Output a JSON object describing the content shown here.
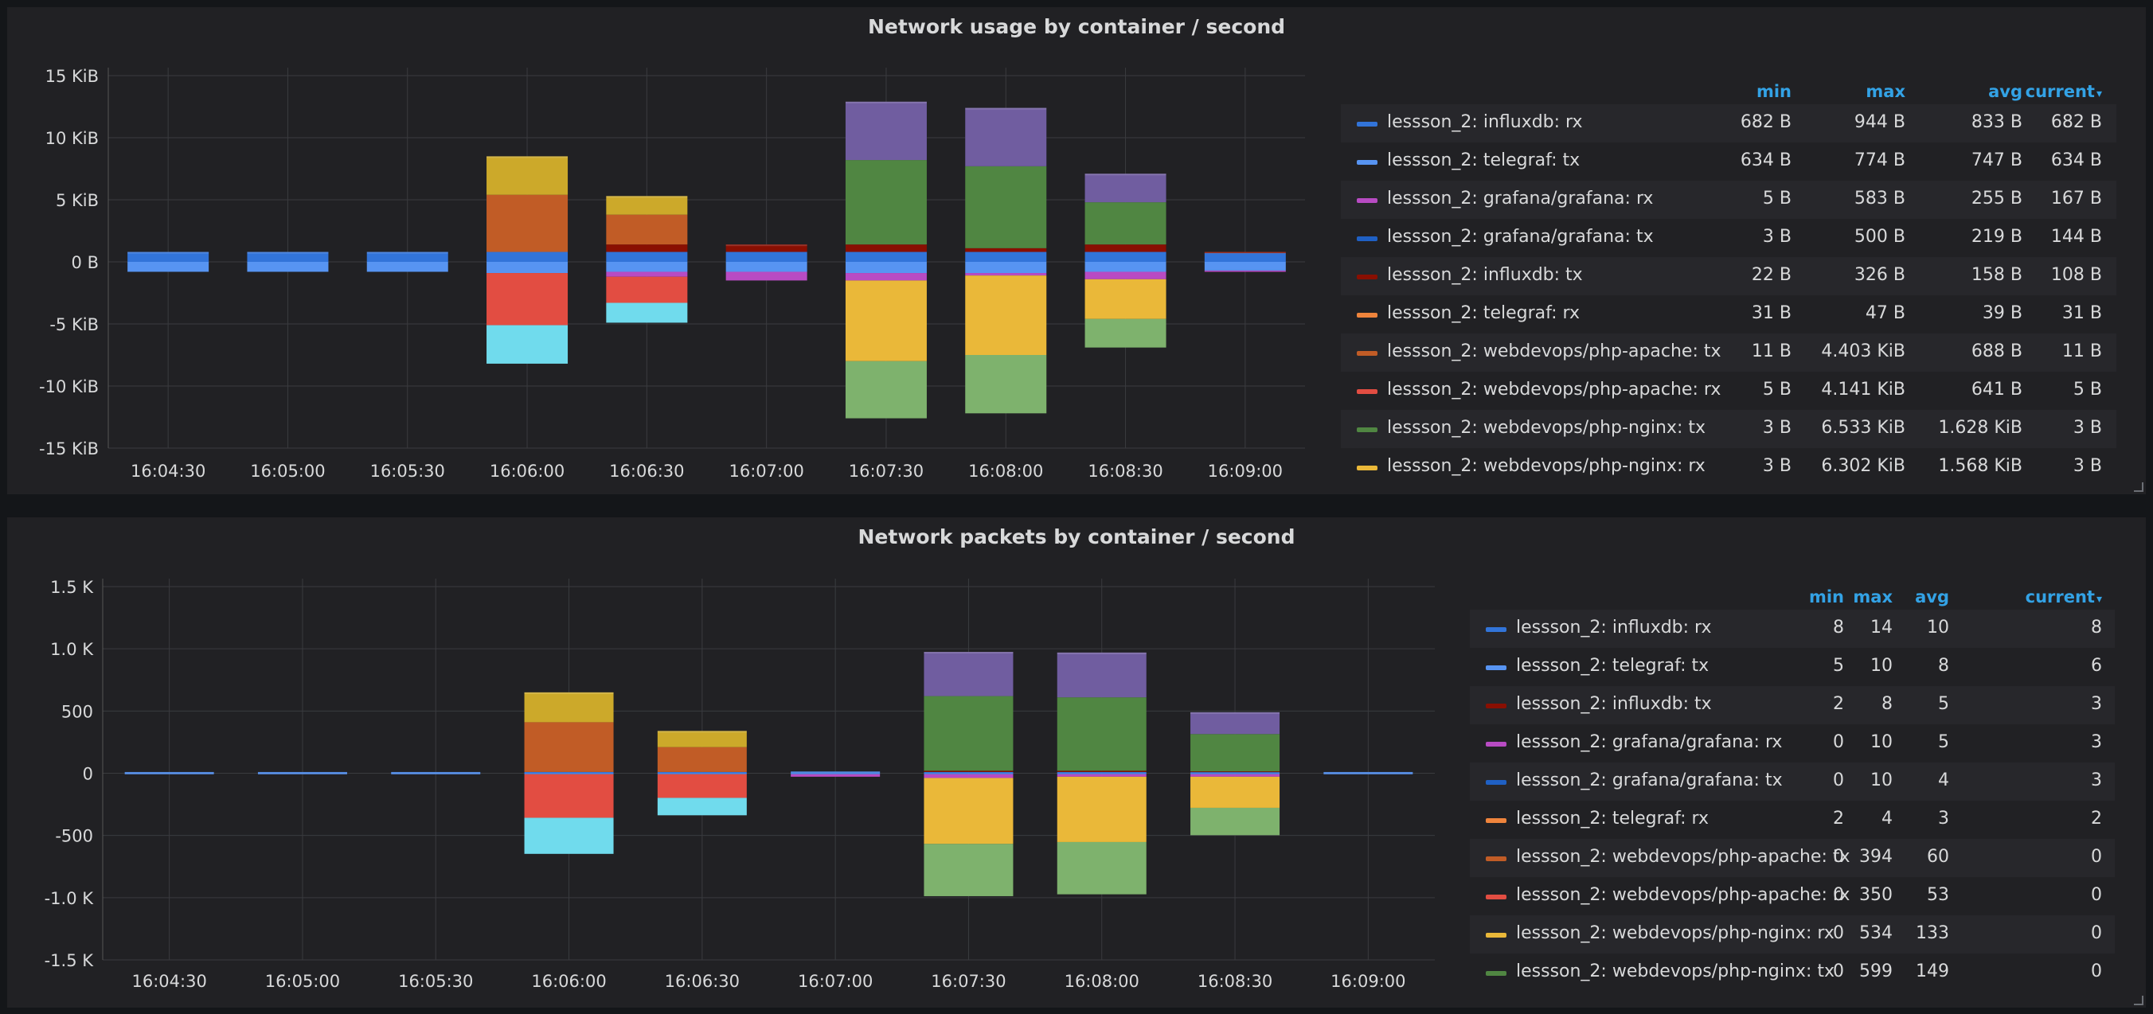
{
  "colors": {
    "accent": "#33a2e5",
    "panel_bg": "#212124",
    "grid": "#3a3b3f",
    "text": "#d8d9da"
  },
  "legend_headers": {
    "min": "min",
    "max": "max",
    "avg": "avg",
    "current": "current"
  },
  "chart_data": [
    {
      "type": "bar",
      "title": "Network usage by container / second",
      "x_ticks": [
        "16:04:30",
        "16:05:00",
        "16:05:30",
        "16:06:00",
        "16:06:30",
        "16:07:00",
        "16:07:30",
        "16:08:00",
        "16:08:30",
        "16:09:00"
      ],
      "y_ticks": [
        {
          "v": 15,
          "label": "15 KiB"
        },
        {
          "v": 10,
          "label": "10 KiB"
        },
        {
          "v": 5,
          "label": "5 KiB"
        },
        {
          "v": 0,
          "label": "0 B"
        },
        {
          "v": -5,
          "label": "-5 KiB"
        },
        {
          "v": -10,
          "label": "-10 KiB"
        },
        {
          "v": -15,
          "label": "-15 KiB"
        }
      ],
      "ylim": [
        -15,
        15
      ],
      "y_unit": "KiB",
      "stacked": true,
      "grid": true,
      "legend_position": "right",
      "bar_x": [
        0,
        1,
        2,
        3,
        4,
        5,
        6,
        7,
        8,
        9
      ],
      "stacks": [
        {
          "pos": [
            [
              0.8,
              "#3274d9"
            ]
          ],
          "neg": [
            [
              -0.8,
              "#5794f2"
            ]
          ]
        },
        {
          "pos": [
            [
              0.8,
              "#3274d9"
            ]
          ],
          "neg": [
            [
              -0.8,
              "#5794f2"
            ]
          ]
        },
        {
          "pos": [
            [
              0.8,
              "#3274d9"
            ]
          ],
          "neg": [
            [
              -0.8,
              "#5794f2"
            ]
          ]
        },
        {
          "pos": [
            [
              0.8,
              "#3274d9"
            ],
            [
              4.6,
              "#c15c26"
            ],
            [
              3.1,
              "#cca92a"
            ]
          ],
          "neg": [
            [
              -0.9,
              "#5794f2"
            ],
            [
              -4.2,
              "#e24d42"
            ],
            [
              -3.1,
              "#70dbed"
            ]
          ]
        },
        {
          "pos": [
            [
              0.8,
              "#3274d9"
            ],
            [
              0.6,
              "#890f02"
            ],
            [
              2.4,
              "#c15c26"
            ],
            [
              1.5,
              "#cca92a"
            ]
          ],
          "neg": [
            [
              -0.8,
              "#5794f2"
            ],
            [
              -0.4,
              "#b84bc3"
            ],
            [
              -2.1,
              "#e24d42"
            ],
            [
              -1.6,
              "#70dbed"
            ]
          ]
        },
        {
          "pos": [
            [
              0.8,
              "#3274d9"
            ],
            [
              0.6,
              "#890f02"
            ]
          ],
          "neg": [
            [
              -0.8,
              "#5794f2"
            ],
            [
              -0.7,
              "#b84bc3"
            ]
          ]
        },
        {
          "pos": [
            [
              0.8,
              "#3274d9"
            ],
            [
              0.6,
              "#890f02"
            ],
            [
              6.8,
              "#508642"
            ],
            [
              4.7,
              "#705da0"
            ]
          ],
          "neg": [
            [
              -0.9,
              "#5794f2"
            ],
            [
              -0.6,
              "#b84bc3"
            ],
            [
              -6.5,
              "#eab839"
            ],
            [
              -4.6,
              "#7eb26d"
            ]
          ]
        },
        {
          "pos": [
            [
              0.8,
              "#3274d9"
            ],
            [
              0.3,
              "#890f02"
            ],
            [
              6.6,
              "#508642"
            ],
            [
              4.7,
              "#705da0"
            ]
          ],
          "neg": [
            [
              -0.9,
              "#5794f2"
            ],
            [
              -0.2,
              "#b84bc3"
            ],
            [
              -6.4,
              "#eab839"
            ],
            [
              -4.7,
              "#7eb26d"
            ]
          ]
        },
        {
          "pos": [
            [
              0.8,
              "#3274d9"
            ],
            [
              0.6,
              "#890f02"
            ],
            [
              3.4,
              "#508642"
            ],
            [
              2.3,
              "#705da0"
            ]
          ],
          "neg": [
            [
              -0.8,
              "#5794f2"
            ],
            [
              -0.6,
              "#b84bc3"
            ],
            [
              -3.2,
              "#eab839"
            ],
            [
              -2.3,
              "#7eb26d"
            ]
          ]
        },
        {
          "pos": [
            [
              0.7,
              "#3274d9"
            ],
            [
              0.1,
              "#890f02"
            ]
          ],
          "neg": [
            [
              -0.7,
              "#5794f2"
            ],
            [
              -0.1,
              "#b84bc3"
            ]
          ]
        }
      ],
      "legend": [
        {
          "name": "lessson_2: influxdb: rx",
          "color": "#3274d9",
          "min": "682 B",
          "max": "944 B",
          "avg": "833 B",
          "current": "682 B"
        },
        {
          "name": "lessson_2: telegraf: tx",
          "color": "#5794f2",
          "min": "634 B",
          "max": "774 B",
          "avg": "747 B",
          "current": "634 B"
        },
        {
          "name": "lessson_2: grafana/grafana: rx",
          "color": "#b84bc3",
          "min": "5 B",
          "max": "583 B",
          "avg": "255 B",
          "current": "167 B"
        },
        {
          "name": "lessson_2: grafana/grafana: tx",
          "color": "#1f60c4",
          "min": "3 B",
          "max": "500 B",
          "avg": "219 B",
          "current": "144 B"
        },
        {
          "name": "lessson_2: influxdb: tx",
          "color": "#890f02",
          "min": "22 B",
          "max": "326 B",
          "avg": "158 B",
          "current": "108 B"
        },
        {
          "name": "lessson_2: telegraf: rx",
          "color": "#ef843c",
          "min": "31 B",
          "max": "47 B",
          "avg": "39 B",
          "current": "31 B"
        },
        {
          "name": "lessson_2: webdevops/php-apache: tx",
          "color": "#c15c26",
          "min": "11 B",
          "max": "4.403 KiB",
          "avg": "688 B",
          "current": "11 B"
        },
        {
          "name": "lessson_2: webdevops/php-apache: rx",
          "color": "#e24d42",
          "min": "5 B",
          "max": "4.141 KiB",
          "avg": "641 B",
          "current": "5 B"
        },
        {
          "name": "lessson_2: webdevops/php-nginx: tx",
          "color": "#508642",
          "min": "3 B",
          "max": "6.533 KiB",
          "avg": "1.628 KiB",
          "current": "3 B"
        },
        {
          "name": "lessson_2: webdevops/php-nginx: rx",
          "color": "#eab839",
          "min": "3 B",
          "max": "6.302 KiB",
          "avg": "1.568 KiB",
          "current": "3 B"
        }
      ]
    },
    {
      "type": "bar",
      "title": "Network packets by container / second",
      "x_ticks": [
        "16:04:30",
        "16:05:00",
        "16:05:30",
        "16:06:00",
        "16:06:30",
        "16:07:00",
        "16:07:30",
        "16:08:00",
        "16:08:30",
        "16:09:00"
      ],
      "y_ticks": [
        {
          "v": 1500,
          "label": "1.5 K"
        },
        {
          "v": 1000,
          "label": "1.0 K"
        },
        {
          "v": 500,
          "label": "500"
        },
        {
          "v": 0,
          "label": "0"
        },
        {
          "v": -500,
          "label": "-500"
        },
        {
          "v": -1000,
          "label": "-1.0 K"
        },
        {
          "v": -1500,
          "label": "-1.5 K"
        }
      ],
      "ylim": [
        -1500,
        1500
      ],
      "stacked": true,
      "grid": true,
      "legend_position": "right",
      "bar_x": [
        0,
        1,
        2,
        3,
        4,
        5,
        6,
        7,
        8,
        9
      ],
      "stacks": [
        {
          "pos": [
            [
              10,
              "#3274d9"
            ]
          ],
          "neg": [
            [
              -8,
              "#5794f2"
            ]
          ]
        },
        {
          "pos": [
            [
              10,
              "#3274d9"
            ]
          ],
          "neg": [
            [
              -8,
              "#5794f2"
            ]
          ]
        },
        {
          "pos": [
            [
              10,
              "#3274d9"
            ]
          ],
          "neg": [
            [
              -8,
              "#5794f2"
            ]
          ]
        },
        {
          "pos": [
            [
              10,
              "#3274d9"
            ],
            [
              400,
              "#c15c26"
            ],
            [
              240,
              "#cca92a"
            ]
          ],
          "neg": [
            [
              -8,
              "#5794f2"
            ],
            [
              -350,
              "#e24d42"
            ],
            [
              -290,
              "#70dbed"
            ]
          ]
        },
        {
          "pos": [
            [
              10,
              "#3274d9"
            ],
            [
              200,
              "#c15c26"
            ],
            [
              130,
              "#cca92a"
            ]
          ],
          "neg": [
            [
              -8,
              "#5794f2"
            ],
            [
              -190,
              "#e24d42"
            ],
            [
              -140,
              "#70dbed"
            ]
          ]
        },
        {
          "pos": [
            [
              14,
              "#3274d9"
            ]
          ],
          "neg": [
            [
              -8,
              "#5794f2"
            ],
            [
              -20,
              "#b84bc3"
            ]
          ]
        },
        {
          "pos": [
            [
              10,
              "#3274d9"
            ],
            [
              10,
              "#890f02"
            ],
            [
              600,
              "#508642"
            ],
            [
              355,
              "#705da0"
            ]
          ],
          "neg": [
            [
              -8,
              "#5794f2"
            ],
            [
              -30,
              "#b84bc3"
            ],
            [
              -530,
              "#eab839"
            ],
            [
              -420,
              "#7eb26d"
            ]
          ]
        },
        {
          "pos": [
            [
              10,
              "#3274d9"
            ],
            [
              10,
              "#890f02"
            ],
            [
              590,
              "#508642"
            ],
            [
              360,
              "#705da0"
            ]
          ],
          "neg": [
            [
              -8,
              "#5794f2"
            ],
            [
              -20,
              "#b84bc3"
            ],
            [
              -525,
              "#eab839"
            ],
            [
              -420,
              "#7eb26d"
            ]
          ]
        },
        {
          "pos": [
            [
              10,
              "#3274d9"
            ],
            [
              5,
              "#890f02"
            ],
            [
              300,
              "#508642"
            ],
            [
              175,
              "#705da0"
            ]
          ],
          "neg": [
            [
              -8,
              "#5794f2"
            ],
            [
              -20,
              "#b84bc3"
            ],
            [
              -250,
              "#eab839"
            ],
            [
              -220,
              "#7eb26d"
            ]
          ]
        },
        {
          "pos": [
            [
              10,
              "#3274d9"
            ]
          ],
          "neg": [
            [
              -8,
              "#5794f2"
            ]
          ]
        }
      ],
      "legend": [
        {
          "name": "lessson_2: influxdb: rx",
          "color": "#3274d9",
          "min": "8",
          "max": "14",
          "avg": "10",
          "current": "8"
        },
        {
          "name": "lessson_2: telegraf: tx",
          "color": "#5794f2",
          "min": "5",
          "max": "10",
          "avg": "8",
          "current": "6"
        },
        {
          "name": "lessson_2: influxdb: tx",
          "color": "#890f02",
          "min": "2",
          "max": "8",
          "avg": "5",
          "current": "3"
        },
        {
          "name": "lessson_2: grafana/grafana: rx",
          "color": "#b84bc3",
          "min": "0",
          "max": "10",
          "avg": "5",
          "current": "3"
        },
        {
          "name": "lessson_2: grafana/grafana: tx",
          "color": "#1f60c4",
          "min": "0",
          "max": "10",
          "avg": "4",
          "current": "3"
        },
        {
          "name": "lessson_2: telegraf: rx",
          "color": "#ef843c",
          "min": "2",
          "max": "4",
          "avg": "3",
          "current": "2"
        },
        {
          "name": "lessson_2: webdevops/php-apache: tx",
          "color": "#c15c26",
          "min": "0",
          "max": "394",
          "avg": "60",
          "current": "0"
        },
        {
          "name": "lessson_2: webdevops/php-apache: rx",
          "color": "#e24d42",
          "min": "0",
          "max": "350",
          "avg": "53",
          "current": "0"
        },
        {
          "name": "lessson_2: webdevops/php-nginx: rx",
          "color": "#eab839",
          "min": "0",
          "max": "534",
          "avg": "133",
          "current": "0"
        },
        {
          "name": "lessson_2: webdevops/php-nginx: tx",
          "color": "#508642",
          "min": "0",
          "max": "599",
          "avg": "149",
          "current": "0"
        }
      ]
    }
  ]
}
